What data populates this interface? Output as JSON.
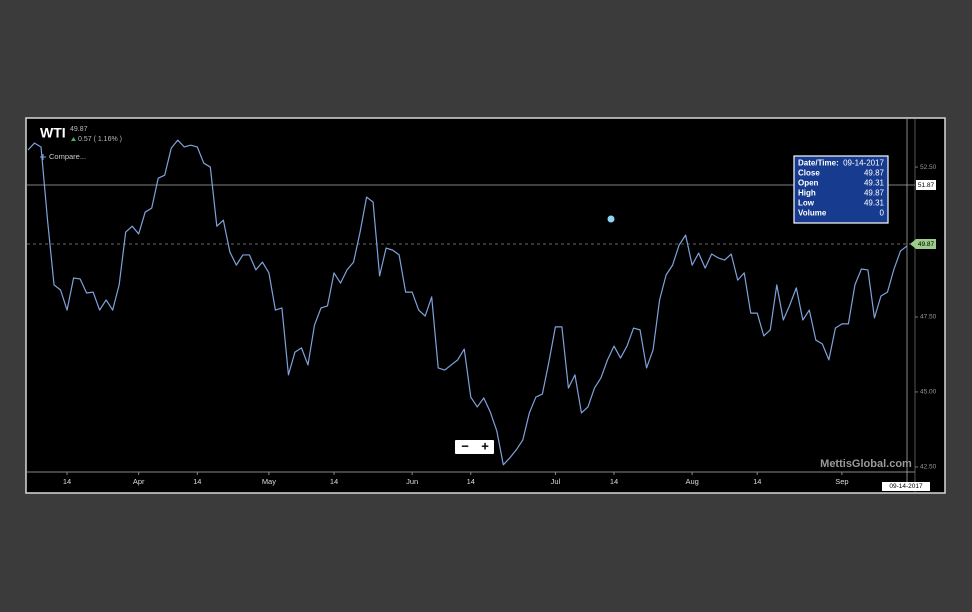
{
  "header": {
    "symbol": "WTI",
    "last": "49.87",
    "change": "0.57 ( 1.16% )",
    "compare": "Compare..."
  },
  "chart_data": {
    "type": "line",
    "color": "#7fa2da",
    "grid": false,
    "categories": [
      null,
      null,
      null,
      null,
      null,
      null,
      "14",
      null,
      null,
      null,
      null,
      null,
      null,
      null,
      null,
      null,
      null,
      "Apr",
      null,
      null,
      null,
      null,
      null,
      null,
      null,
      null,
      "14",
      null,
      null,
      null,
      null,
      null,
      null,
      null,
      null,
      null,
      null,
      "May",
      null,
      null,
      null,
      null,
      null,
      null,
      null,
      null,
      null,
      "14",
      null,
      null,
      null,
      null,
      null,
      null,
      null,
      null,
      null,
      null,
      null,
      "Jun",
      null,
      null,
      null,
      null,
      null,
      null,
      null,
      null,
      "14",
      null,
      null,
      null,
      null,
      null,
      null,
      null,
      null,
      null,
      null,
      null,
      null,
      "Jul",
      null,
      null,
      null,
      null,
      null,
      null,
      null,
      null,
      "14",
      null,
      null,
      null,
      null,
      null,
      null,
      null,
      null,
      null,
      null,
      null,
      "Aug",
      null,
      null,
      null,
      null,
      null,
      null,
      null,
      null,
      null,
      "14",
      null,
      null,
      null,
      null,
      null,
      null,
      null,
      null,
      null,
      null,
      null,
      null,
      "Sep",
      null,
      null,
      null,
      null,
      null,
      null,
      null,
      null,
      null,
      null
    ],
    "values": [
      53.07,
      53.3,
      53.17,
      50.73,
      48.57,
      48.4,
      47.73,
      48.8,
      48.77,
      48.3,
      48.33,
      47.73,
      48.07,
      47.73,
      48.57,
      50.33,
      50.53,
      50.27,
      51,
      51.13,
      52.13,
      52.23,
      53.13,
      53.4,
      53.17,
      53.23,
      53.17,
      52.63,
      52.5,
      50.53,
      50.73,
      49.67,
      49.23,
      49.57,
      49.57,
      49.07,
      49.33,
      48.97,
      47.73,
      47.8,
      45.57,
      46.33,
      46.47,
      45.9,
      47.23,
      47.8,
      47.87,
      48.97,
      48.63,
      49.07,
      49.33,
      50.33,
      51.5,
      51.33,
      48.87,
      49.8,
      49.73,
      49.57,
      48.33,
      48.33,
      47.73,
      47.53,
      48.17,
      45.8,
      45.73,
      45.9,
      46.07,
      46.43,
      44.83,
      44.5,
      44.8,
      44.33,
      43.7,
      42.57,
      42.8,
      43.07,
      43.4,
      44.3,
      44.83,
      44.93,
      46,
      47.17,
      47.17,
      45.13,
      45.57,
      44.3,
      44.5,
      45.13,
      45.47,
      46.07,
      46.53,
      46.13,
      46.53,
      47.13,
      47.07,
      45.8,
      46.4,
      48.07,
      48.9,
      49.23,
      49.9,
      50.23,
      49.23,
      49.63,
      49.13,
      49.6,
      49.47,
      49.4,
      49.6,
      48.73,
      48.97,
      47.63,
      47.63,
      46.87,
      47.07,
      48.57,
      47.4,
      47.9,
      48.47,
      47.4,
      47.73,
      46.73,
      46.6,
      46.07,
      47.13,
      47.27,
      47.27,
      48.57,
      49.1,
      49.07,
      47.47,
      48.2,
      48.33,
      49.1,
      49.7,
      49.87
    ],
    "ylim": [
      42.33,
      54.07
    ],
    "yticks": [
      {
        "value": 42.5,
        "label": "42.50"
      },
      {
        "value": 45,
        "label": "45.00"
      },
      {
        "value": 47.5,
        "label": "47.50"
      },
      {
        "value": 52.5,
        "label": "52.50"
      }
    ]
  },
  "crosshair": {
    "price": "51.87",
    "last": "49.87",
    "date": "09-14-2017"
  },
  "tooltip": {
    "rows": [
      [
        "Date/Time:",
        "09-14-2017"
      ],
      [
        "Close",
        "49.87"
      ],
      [
        "Open",
        "49.31"
      ],
      [
        "High",
        "49.87"
      ],
      [
        "Low",
        "49.31"
      ],
      [
        "Volume",
        "0"
      ]
    ]
  },
  "zoom": {
    "out": "−",
    "in": "+"
  },
  "watermark": "MettisGlobal.com"
}
